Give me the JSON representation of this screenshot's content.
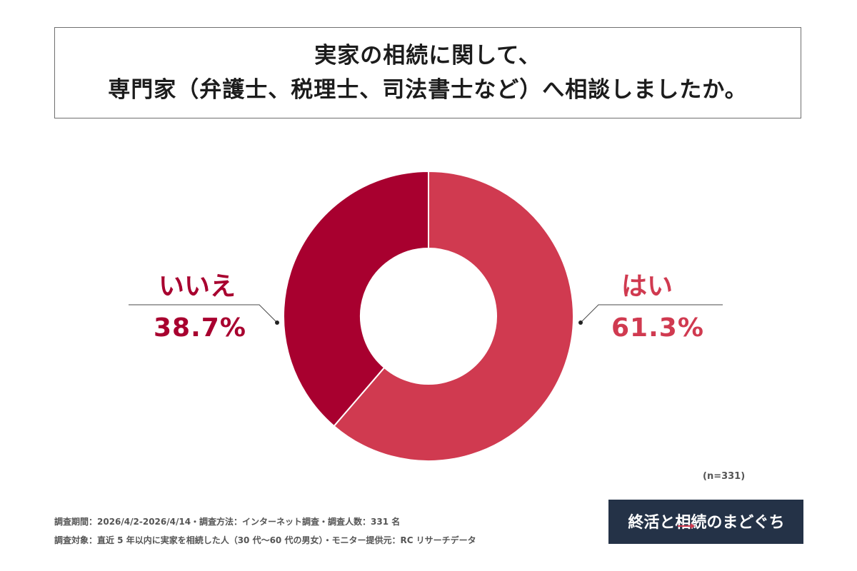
{
  "title": {
    "line1": "実家の相続に関して、",
    "line2": "専門家（弁護士、税理士、司法書士など）へ相談しましたか。"
  },
  "chart_data": {
    "type": "pie",
    "donut": true,
    "title": "実家の相続に関して、専門家（弁護士、税理士、司法書士など）へ相談しましたか。",
    "slices": [
      {
        "label": "はい",
        "value": 61.3,
        "value_text": "61.3%",
        "color": "#d03a50"
      },
      {
        "label": "いいえ",
        "value": 38.7,
        "value_text": "38.7%",
        "color": "#a8002f"
      }
    ],
    "sample_note": "(n=331)"
  },
  "footer": {
    "line1": "調査期間：2026/4/2-2026/4/14・調査方法：インターネット調査・調査人数：331 名",
    "line2": "調査対象：直近 5 年以内に実家を相続した人（30 代〜60 代の男女）・モニター提供元：RC リサーチデータ"
  },
  "logo": {
    "text": "終活と相続のまどぐち",
    "background": "#243247",
    "text_color": "#ffffff",
    "accent_color": "#d03a50"
  },
  "colors": {
    "yes": "#d03a50",
    "no": "#a8002f",
    "border": "#6f6f6f",
    "footer_text": "#555555"
  }
}
